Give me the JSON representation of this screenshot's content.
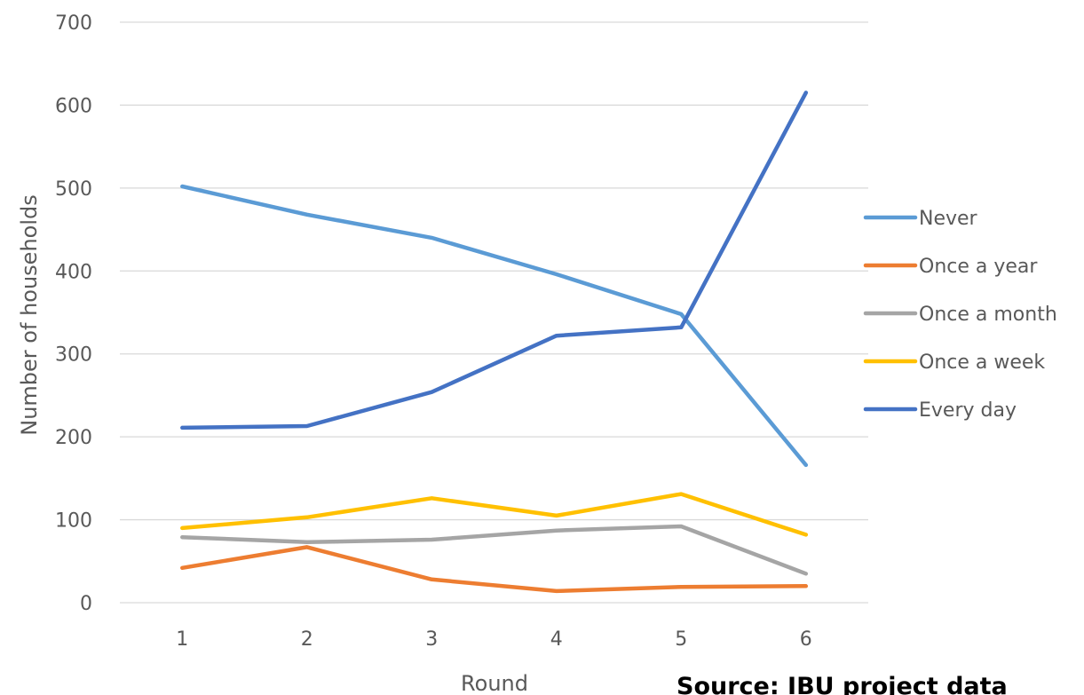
{
  "chart_data": {
    "type": "line",
    "title": "",
    "xlabel": "Round",
    "ylabel": "Number of households",
    "x": [
      1,
      2,
      3,
      4,
      5,
      6
    ],
    "x_tick_labels": [
      "1",
      "2",
      "3",
      "4",
      "5",
      "6"
    ],
    "y_ticks": [
      0,
      100,
      200,
      300,
      400,
      500,
      600,
      700
    ],
    "y_tick_labels": [
      "0",
      "100",
      "200",
      "300",
      "400",
      "500",
      "600",
      "700"
    ],
    "ylim": [
      0,
      700
    ],
    "grid": true,
    "legend_position": "right",
    "series": [
      {
        "name": "Never",
        "color": "#5b9bd5",
        "values": [
          502,
          468,
          440,
          396,
          348,
          166
        ]
      },
      {
        "name": "Once a year",
        "color": "#ed7d31",
        "values": [
          42,
          67,
          28,
          14,
          19,
          20
        ]
      },
      {
        "name": "Once a month",
        "color": "#a5a5a5",
        "values": [
          79,
          73,
          76,
          87,
          92,
          35
        ]
      },
      {
        "name": "Once a week",
        "color": "#ffc000",
        "values": [
          90,
          103,
          126,
          105,
          131,
          82
        ]
      },
      {
        "name": "Every day",
        "color": "#4472c4",
        "values": [
          211,
          213,
          254,
          322,
          332,
          615
        ]
      }
    ],
    "annotation": "Source: IBU project data"
  }
}
